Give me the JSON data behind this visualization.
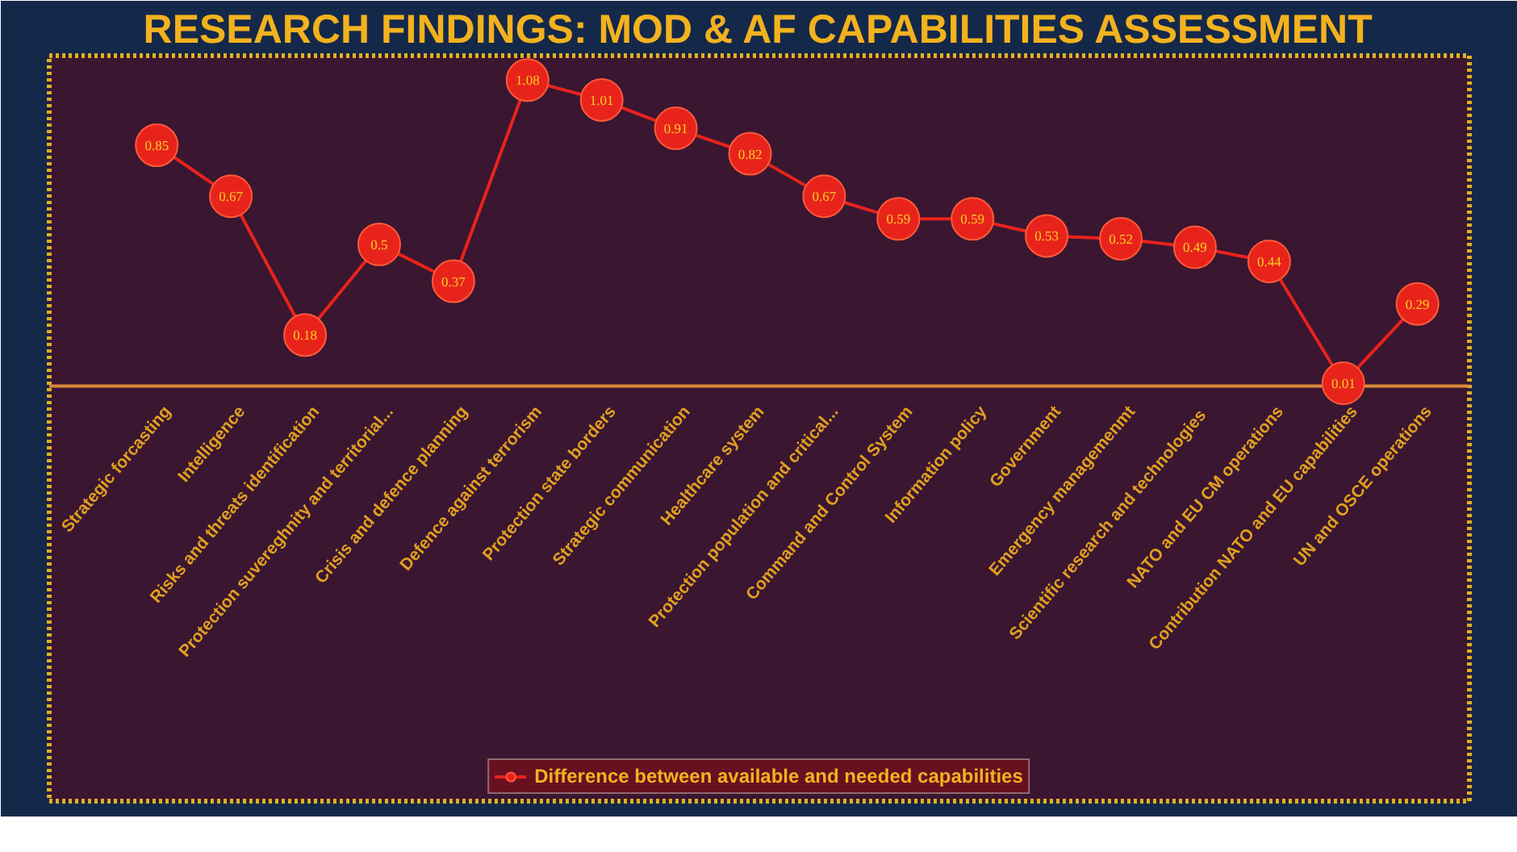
{
  "chart_data": {
    "type": "line",
    "title": "RESEARCH FINDINGS: MOD & AF CAPABILITIES ASSESSMENT",
    "categories": [
      "Strategic forcasting",
      "Intelligence",
      "Risks and threats identification",
      "Protection suvereghnity and territorial...",
      "Crisis and defence planning",
      "Defence against terrorism",
      "Protection state borders",
      "Strategic communication",
      "Healthcare system",
      "Protection population and critical...",
      "Command and Control System",
      "Information policy",
      "Government",
      "Emergency managemenmt",
      "Scientific research  and technologies",
      "NATO and EU CM operations",
      "Contribution NATO and EU capabilities",
      "UN and OSCE operations"
    ],
    "series": [
      {
        "name": "Difference between available and needed capabilities",
        "color": "#e8231c",
        "values": [
          0.85,
          0.67,
          0.18,
          0.5,
          0.37,
          1.08,
          1.01,
          0.91,
          0.82,
          0.67,
          0.59,
          0.59,
          0.53,
          0.52,
          0.49,
          0.44,
          0.01,
          0.29
        ]
      }
    ],
    "data_labels": true,
    "marker": "circle",
    "line_style": "solid",
    "legend": "bottom",
    "grid": false,
    "tick_labels": "x"
  }
}
